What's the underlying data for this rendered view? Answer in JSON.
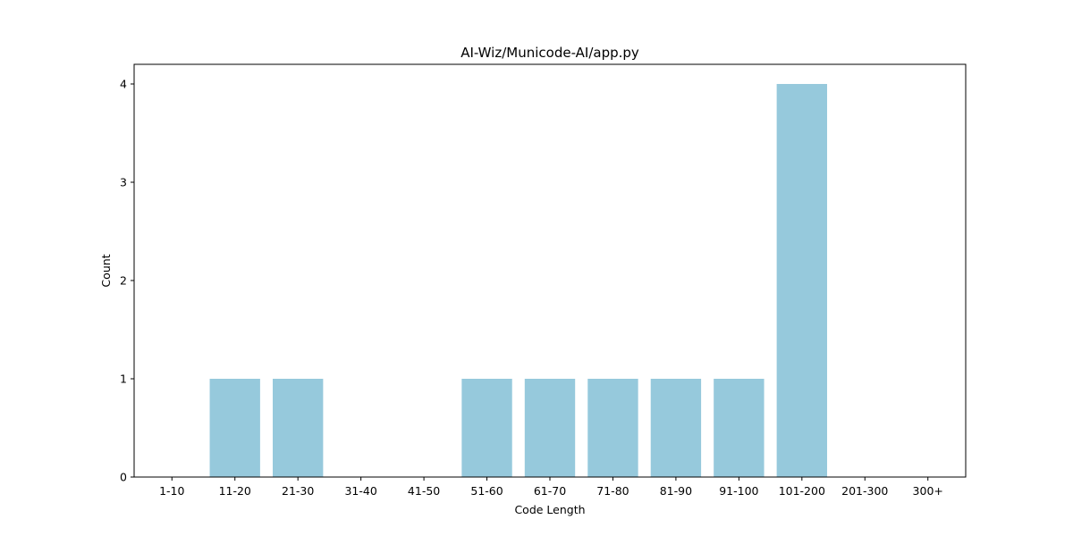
{
  "chart_data": {
    "type": "bar",
    "title": "AI-Wiz/Municode-AI/app.py",
    "xlabel": "Code Length",
    "ylabel": "Count",
    "categories": [
      "1-10",
      "11-20",
      "21-30",
      "31-40",
      "41-50",
      "51-60",
      "61-70",
      "71-80",
      "81-90",
      "91-100",
      "101-200",
      "201-300",
      "300+"
    ],
    "values": [
      0,
      1,
      1,
      0,
      0,
      1,
      1,
      1,
      1,
      1,
      4,
      0,
      0
    ],
    "yticks": [
      0,
      1,
      2,
      3,
      4
    ],
    "ylim": [
      0,
      4.2
    ],
    "grid": false,
    "bar_color": "#96c9dc"
  }
}
